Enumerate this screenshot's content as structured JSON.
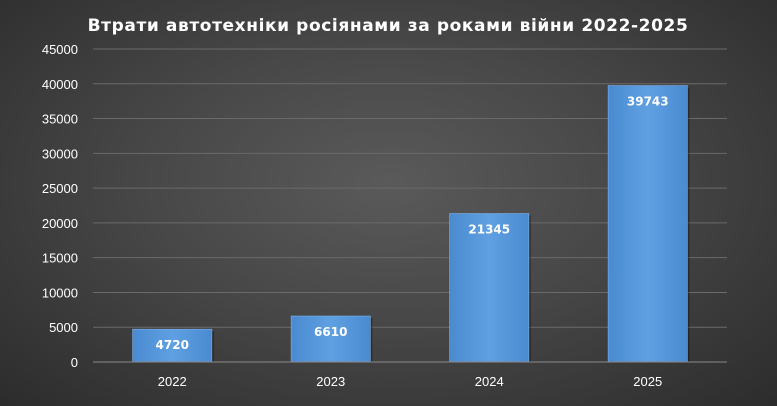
{
  "chart_data": {
    "type": "bar",
    "title": "Втрати автотехніки росіянами за роками війни 2022-2025",
    "xlabel": "",
    "ylabel": "",
    "categories": [
      "2022",
      "2023",
      "2024",
      "2025"
    ],
    "values": [
      4720,
      6610,
      21345,
      39743
    ],
    "data_labels": [
      "4720",
      "6610",
      "21345",
      "39743"
    ],
    "ylim": [
      0,
      45000
    ],
    "yticks": [
      0,
      5000,
      10000,
      15000,
      20000,
      25000,
      30000,
      35000,
      40000,
      45000
    ],
    "grid": true,
    "legend": "none",
    "bar_color": "#5b9bd5"
  }
}
